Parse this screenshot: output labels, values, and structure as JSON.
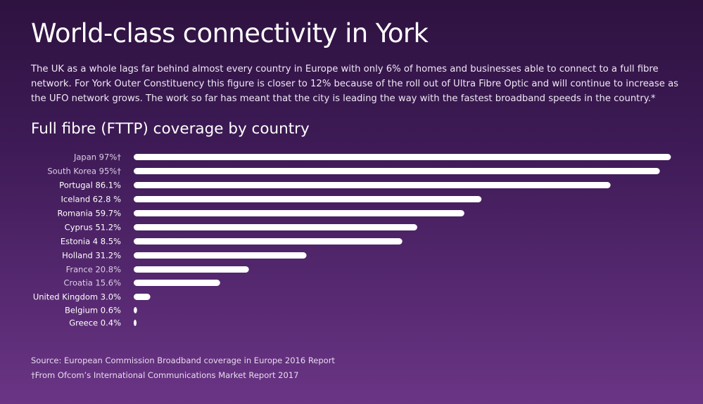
{
  "header": {
    "title": "World-class connectivity in York",
    "intro": "The UK as a whole lags far behind almost every country in Europe with only 6% of homes and businesses able to connect to a full fibre network. For York Outer Constituency this figure is closer to 12% because of the roll out of Ultra Fibre Optic and will continue to increase as the UFO network grows. The work so far has meant that the city is leading the way with the fastest broadband speeds in the country.*"
  },
  "chart_data": {
    "type": "bar",
    "orientation": "horizontal",
    "title": "Full fibre (FTTP) coverage by country",
    "categories": [
      "Japan",
      "South Korea",
      "Portugal",
      "Iceland",
      "Romania",
      "Cyprus",
      "Estonia",
      "Holland",
      "France",
      "Croatia",
      "United Kingdom",
      "Belgium",
      "Greece"
    ],
    "values": [
      97,
      95,
      86.1,
      62.8,
      59.7,
      51.2,
      48.5,
      31.2,
      20.8,
      15.6,
      3.0,
      0.6,
      0.4
    ],
    "labels": [
      "Japan 97%†",
      "South Korea 95%†",
      "Portugal 86.1%",
      "Iceland 62.8 %",
      "Romania 59.7%",
      "Cyprus 51.2%",
      "Estonia 4 8.5%",
      "Holland 31.2%",
      "France 20.8%",
      "Croatia 15.6%",
      "United Kingdom 3.0%",
      "Belgium 0.6%",
      "Greece  0.4%"
    ],
    "xlim": [
      0,
      100
    ],
    "grid": false,
    "bar_color": "#ffffff"
  },
  "footer": {
    "source": "Source: European Commission Broadband coverage in Europe 2016 Report",
    "footnote": "†From Ofcom’s International Communications Market Report 2017"
  }
}
